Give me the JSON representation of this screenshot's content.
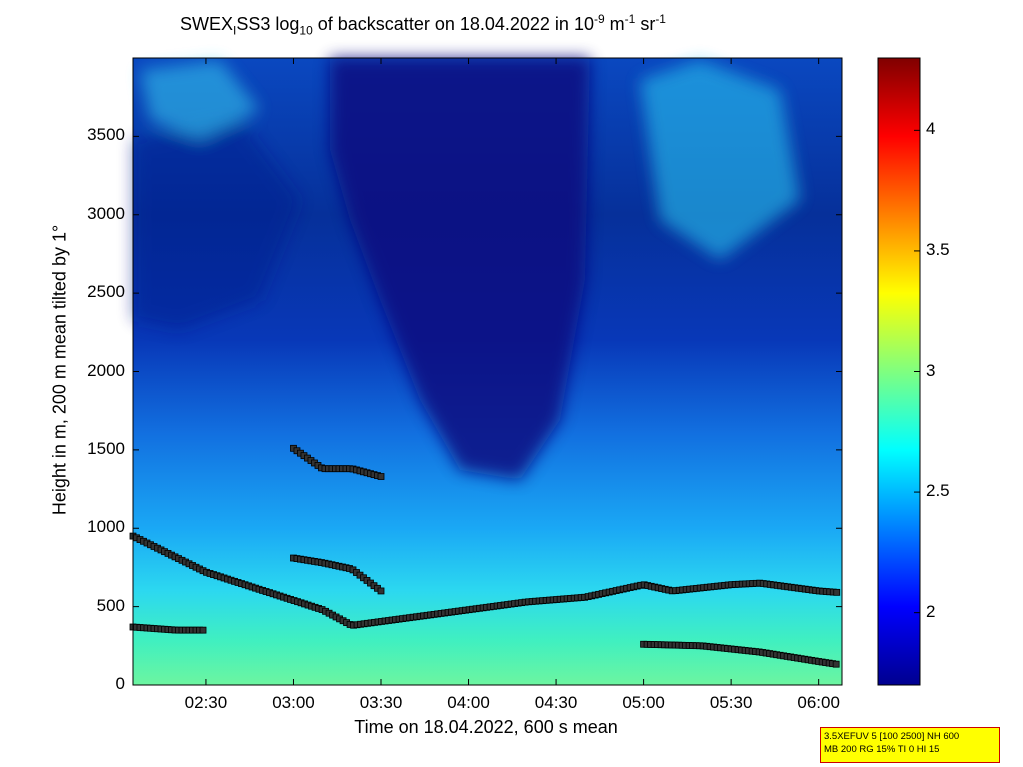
{
  "title": {
    "prefix": "SWEX",
    "sub1": "I",
    "mid": "SS3 log",
    "sub2": "10",
    "suffix": " of backscatter on 18.04.2022 in 10",
    "sup1": "-9",
    "unit1": " m",
    "sup2": "-1",
    "unit2": " sr",
    "sup3": "-1"
  },
  "info_box": {
    "line1": "3.5XEFUV 5 [100 2500] NH 600",
    "line2": "MB 200 RG 15% TI 0 HI 15"
  },
  "chart_data": {
    "type": "heatmap",
    "xlabel": "Time on 18.04.2022, 600 s mean",
    "ylabel": "Height in m, 200 m mean tilted by 1°",
    "xlim": [
      "02:05",
      "06:08"
    ],
    "ylim": [
      0,
      4000
    ],
    "x_ticks": [
      "02:30",
      "03:00",
      "03:30",
      "04:00",
      "04:30",
      "05:00",
      "05:30",
      "06:00"
    ],
    "y_ticks": [
      0,
      500,
      1000,
      1500,
      2000,
      2500,
      3000,
      3500
    ],
    "colorbar": {
      "range": [
        1.7,
        4.3
      ],
      "ticks": [
        "2",
        "2.5",
        "3",
        "3.5",
        "4"
      ],
      "colormap": "jet"
    },
    "layers": [
      {
        "name": "lower",
        "times": [
          "02:05",
          "02:30",
          "02:50",
          "03:10",
          "03:20",
          "03:40",
          "04:00",
          "04:20",
          "04:40",
          "05:00",
          "05:10",
          "05:30",
          "05:40",
          "06:00",
          "06:07"
        ],
        "heights": [
          950,
          720,
          600,
          480,
          380,
          430,
          480,
          530,
          560,
          640,
          600,
          640,
          650,
          600,
          590
        ]
      },
      {
        "name": "bottom-left",
        "times": [
          "02:05",
          "02:20",
          "02:30"
        ],
        "heights": [
          370,
          350,
          350
        ]
      },
      {
        "name": "bottom-right",
        "times": [
          "05:00",
          "05:20",
          "05:40",
          "06:00",
          "06:07"
        ],
        "heights": [
          260,
          250,
          210,
          150,
          130
        ]
      },
      {
        "name": "mid",
        "times": [
          "03:00",
          "03:10",
          "03:20",
          "03:30"
        ],
        "heights": [
          810,
          780,
          740,
          600
        ]
      },
      {
        "name": "upper",
        "times": [
          "03:00",
          "03:10",
          "03:20",
          "03:30"
        ],
        "heights": [
          1510,
          1380,
          1380,
          1330
        ]
      }
    ]
  }
}
